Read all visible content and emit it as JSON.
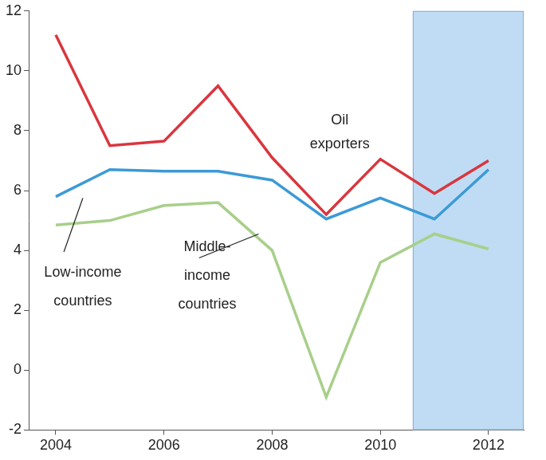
{
  "chart_data": {
    "type": "line",
    "x": [
      2004,
      2005,
      2006,
      2007,
      2008,
      2009,
      2010,
      2011,
      2012
    ],
    "series": [
      {
        "name": "Oil exporters",
        "color": "#d9363e",
        "values": [
          11.2,
          7.5,
          7.65,
          9.5,
          7.1,
          5.2,
          7.05,
          5.9,
          7.0
        ]
      },
      {
        "name": "Low-income countries",
        "color": "#3c9ad6",
        "values": [
          5.8,
          6.7,
          6.65,
          6.65,
          6.35,
          5.05,
          5.75,
          5.05,
          6.7
        ]
      },
      {
        "name": "Middle-income countries",
        "color": "#a8cf8a",
        "values": [
          4.85,
          5.0,
          5.5,
          5.6,
          4.0,
          -0.9,
          3.6,
          4.55,
          4.05
        ]
      }
    ],
    "xlim": [
      2003.5,
      2012.65
    ],
    "xticks": [
      2004,
      2006,
      2008,
      2010,
      2012
    ],
    "ylim": [
      -2,
      12
    ],
    "yticks": [
      -2,
      0,
      2,
      4,
      6,
      8,
      10,
      12
    ],
    "shaded_x": [
      2010.6,
      2012.65
    ],
    "grid": false,
    "legend": false
  }
}
